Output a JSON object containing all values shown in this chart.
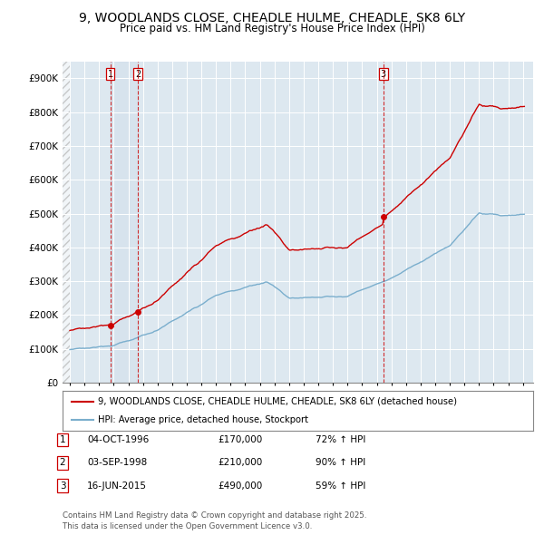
{
  "title": "9, WOODLANDS CLOSE, CHEADLE HULME, CHEADLE, SK8 6LY",
  "subtitle": "Price paid vs. HM Land Registry's House Price Index (HPI)",
  "title_fontsize": 10,
  "subtitle_fontsize": 8.5,
  "background_color": "#ffffff",
  "plot_bg_color": "#dde8f0",
  "grid_color": "#ffffff",
  "red_line_color": "#cc0000",
  "blue_line_color": "#7aaecd",
  "transactions": [
    {
      "num": 1,
      "date_val": 1996.76,
      "price": 170000,
      "label": "04-OCT-1996",
      "price_str": "£170,000",
      "hpi_pct": "72% ↑ HPI"
    },
    {
      "num": 2,
      "date_val": 1998.67,
      "price": 210000,
      "label": "03-SEP-1998",
      "price_str": "£210,000",
      "hpi_pct": "90% ↑ HPI"
    },
    {
      "num": 3,
      "date_val": 2015.45,
      "price": 490000,
      "label": "16-JUN-2015",
      "price_str": "£490,000",
      "hpi_pct": "59% ↑ HPI"
    }
  ],
  "legend_label_red": "9, WOODLANDS CLOSE, CHEADLE HULME, CHEADLE, SK8 6LY (detached house)",
  "legend_label_blue": "HPI: Average price, detached house, Stockport",
  "footer": "Contains HM Land Registry data © Crown copyright and database right 2025.\nThis data is licensed under the Open Government Licence v3.0.",
  "ylim": [
    0,
    950000
  ],
  "yticks": [
    0,
    100000,
    200000,
    300000,
    400000,
    500000,
    600000,
    700000,
    800000,
    900000
  ],
  "ytick_labels": [
    "£0",
    "£100K",
    "£200K",
    "£300K",
    "£400K",
    "£500K",
    "£600K",
    "£700K",
    "£800K",
    "£900K"
  ],
  "xlim_start": 1993.5,
  "xlim_end": 2025.7
}
